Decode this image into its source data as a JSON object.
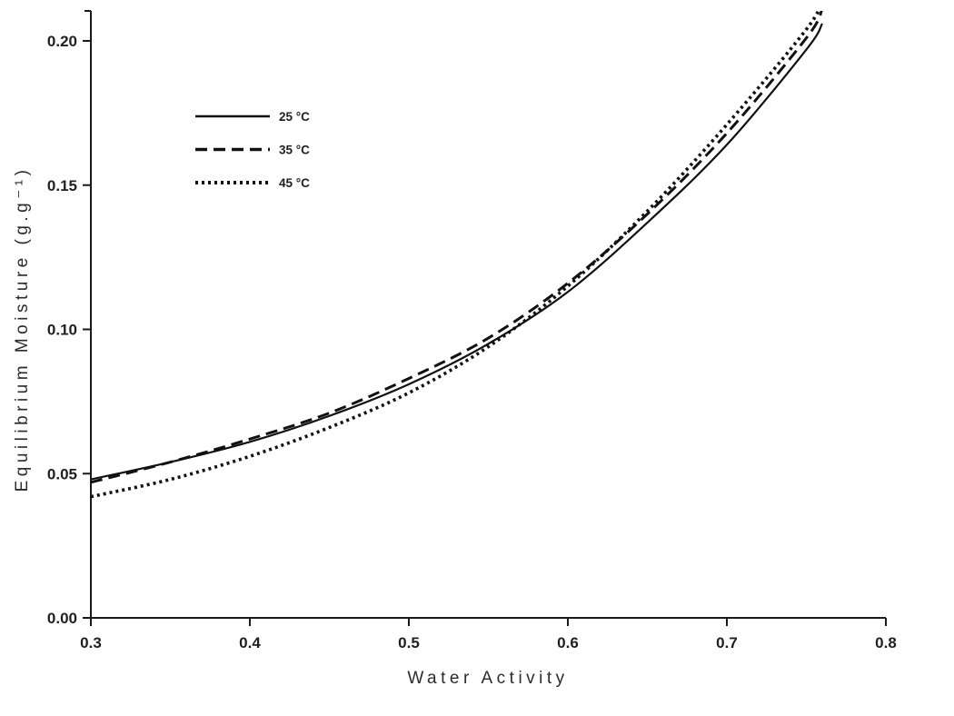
{
  "chart_data": {
    "type": "line",
    "title": "",
    "xlabel": "Water Activity",
    "ylabel": "Equilibrium Moisture (g.g⁻¹)",
    "xlim": [
      0.3,
      0.8
    ],
    "ylim": [
      0.0,
      0.2
    ],
    "xticks": [
      0.3,
      0.4,
      0.5,
      0.6,
      0.7,
      0.8
    ],
    "xtick_labels": [
      "0.3",
      "0.4",
      "0.5",
      "0.6",
      "0.7",
      "0.8"
    ],
    "yticks": [
      0.0,
      0.05,
      0.1,
      0.15,
      0.2
    ],
    "ytick_labels": [
      "0.00",
      "0.05",
      "0.10",
      "0.15",
      "0.20"
    ],
    "grid": false,
    "legend_position": "upper-left",
    "axis_color": "#1a1a1a",
    "line_color": "#111111",
    "text_color": "#1f1f1f",
    "x": [
      0.3,
      0.35,
      0.4,
      0.45,
      0.5,
      0.55,
      0.6,
      0.65,
      0.7,
      0.75,
      0.76
    ],
    "series": [
      {
        "name": "25 °C",
        "style": "solid",
        "values": [
          0.048,
          0.054,
          0.061,
          0.07,
          0.081,
          0.095,
          0.113,
          0.137,
          0.164,
          0.197,
          0.206
        ]
      },
      {
        "name": "35 °C",
        "style": "dashed",
        "values": [
          0.047,
          0.054,
          0.062,
          0.071,
          0.083,
          0.097,
          0.116,
          0.14,
          0.168,
          0.201,
          0.211
        ]
      },
      {
        "name": "45 °C",
        "style": "dotted",
        "values": [
          0.042,
          0.048,
          0.056,
          0.066,
          0.078,
          0.094,
          0.115,
          0.141,
          0.171,
          0.204,
          0.214
        ]
      }
    ]
  }
}
